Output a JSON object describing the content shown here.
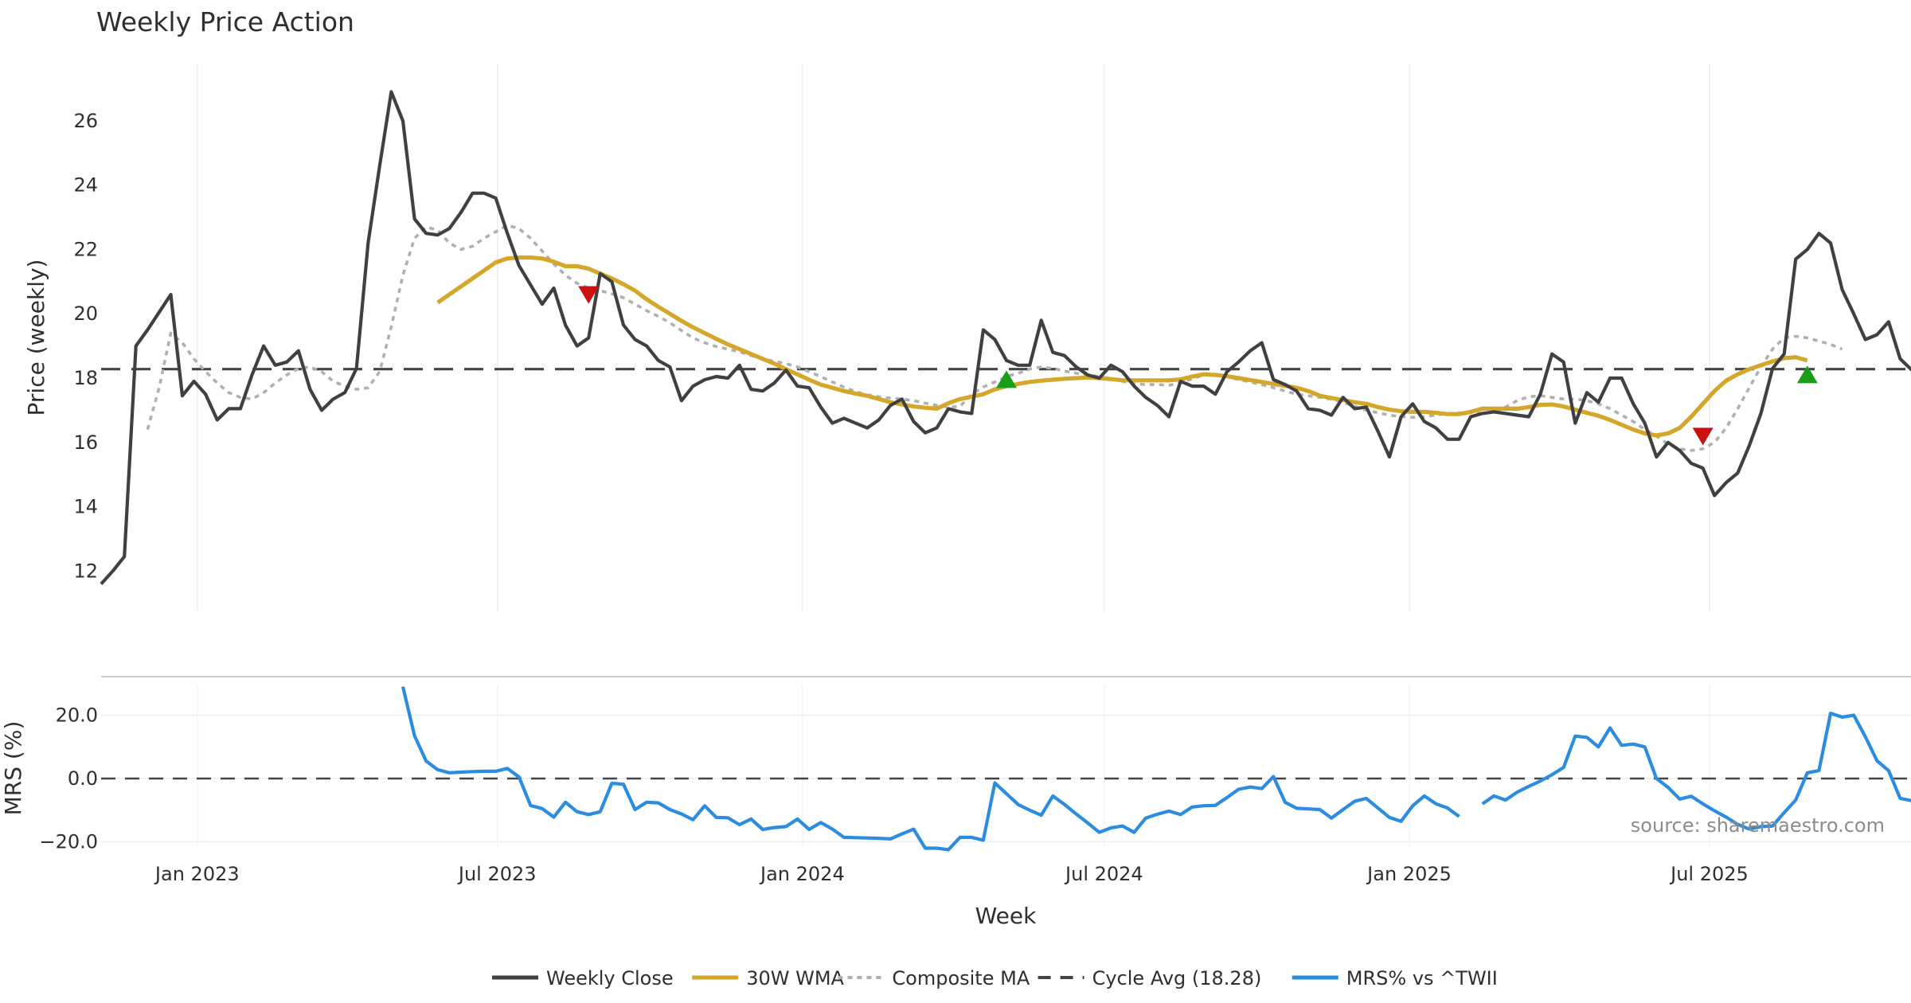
{
  "chart_data": {
    "type": "line",
    "title": "Weekly Price Action",
    "xlabel": "Week",
    "start_week": "2022-11-04",
    "x_ticks": [
      {
        "date": "2023-01-01",
        "label": "Jan 2023"
      },
      {
        "date": "2023-07-01",
        "label": "Jul 2023"
      },
      {
        "date": "2024-01-01",
        "label": "Jan 2024"
      },
      {
        "date": "2024-07-01",
        "label": "Jul 2024"
      },
      {
        "date": "2025-01-01",
        "label": "Jan 2025"
      },
      {
        "date": "2025-07-01",
        "label": "Jul 2025"
      }
    ],
    "price_panel": {
      "ylabel": "Price (weekly)",
      "ylim": [
        11.2,
        27.8
      ],
      "y_ticks": [
        "12",
        "14",
        "16",
        "18",
        "20",
        "22",
        "24",
        "26"
      ],
      "cycle_avg": 18.28,
      "series": [
        {
          "name": "Weekly Close",
          "color": "#404040",
          "style": "solid",
          "start_index": 0,
          "values": [
            11.6,
            12.0,
            12.45,
            19.0,
            19.5,
            20.05,
            20.6,
            17.45,
            17.9,
            17.5,
            16.7,
            17.05,
            17.05,
            18.1,
            19.0,
            18.4,
            18.5,
            18.85,
            17.65,
            17.0,
            17.35,
            17.55,
            18.3,
            22.2,
            24.6,
            26.9,
            26.0,
            22.95,
            22.5,
            22.45,
            22.65,
            23.15,
            23.75,
            23.75,
            23.6,
            22.5,
            21.5,
            20.9,
            20.3,
            20.8,
            19.65,
            19.0,
            19.25,
            21.25,
            21.0,
            19.65,
            19.2,
            19.0,
            18.55,
            18.35,
            17.3,
            17.75,
            17.95,
            18.05,
            18.0,
            18.4,
            17.65,
            17.6,
            17.85,
            18.25,
            17.75,
            17.7,
            17.1,
            16.6,
            16.75,
            16.6,
            16.45,
            16.7,
            17.15,
            17.35,
            16.65,
            16.3,
            16.45,
            17.05,
            16.95,
            16.9,
            19.5,
            19.2,
            18.55,
            18.4,
            18.4,
            19.8,
            18.8,
            18.7,
            18.35,
            18.1,
            18.0,
            18.4,
            18.2,
            17.75,
            17.4,
            17.15,
            16.8,
            17.9,
            17.75,
            17.75,
            17.5,
            18.2,
            18.5,
            18.85,
            19.1,
            17.95,
            17.8,
            17.6,
            17.05,
            17.0,
            16.85,
            17.4,
            17.05,
            17.1,
            16.35,
            15.55,
            16.8,
            17.2,
            16.65,
            16.45,
            16.1,
            16.1,
            16.8,
            16.9,
            16.95,
            16.9,
            16.85,
            16.8,
            17.5,
            18.75,
            18.5,
            16.6,
            17.55,
            17.25,
            18.0,
            18.0,
            17.2,
            16.6,
            15.55,
            16.0,
            15.75,
            15.35,
            15.2,
            14.35,
            14.75,
            15.05,
            15.9,
            16.9,
            18.3,
            18.75,
            21.7,
            22.0,
            22.5,
            22.2,
            20.75,
            20.0,
            19.2,
            19.35,
            19.75,
            18.6,
            18.25
          ]
        },
        {
          "name": "30W WMA",
          "color": "#d4a62a",
          "style": "solid",
          "start_index": 29,
          "values": [
            20.35,
            20.6,
            20.85,
            21.1,
            21.35,
            21.6,
            21.72,
            21.75,
            21.75,
            21.72,
            21.62,
            21.48,
            21.48,
            21.4,
            21.25,
            21.1,
            20.92,
            20.72,
            20.45,
            20.22,
            20.0,
            19.78,
            19.58,
            19.4,
            19.22,
            19.05,
            18.9,
            18.75,
            18.6,
            18.45,
            18.28,
            18.12,
            17.95,
            17.8,
            17.7,
            17.6,
            17.52,
            17.45,
            17.35,
            17.25,
            17.18,
            17.12,
            17.08,
            17.05,
            17.22,
            17.35,
            17.42,
            17.5,
            17.65,
            17.75,
            17.82,
            17.88,
            17.92,
            17.95,
            17.98,
            18.0,
            18.02,
            18.0,
            17.97,
            17.93,
            17.93,
            17.93,
            17.93,
            17.93,
            17.96,
            18.05,
            18.12,
            18.1,
            18.06,
            18.0,
            17.94,
            17.88,
            17.82,
            17.76,
            17.7,
            17.6,
            17.45,
            17.38,
            17.32,
            17.25,
            17.2,
            17.1,
            17.02,
            16.97,
            16.95,
            16.95,
            16.92,
            16.88,
            16.88,
            16.95,
            17.05,
            17.05,
            17.05,
            17.05,
            17.1,
            17.17,
            17.18,
            17.12,
            17.02,
            16.92,
            16.83,
            16.7,
            16.55,
            16.4,
            16.28,
            16.22,
            16.28,
            16.45,
            16.8,
            17.2,
            17.6,
            17.92,
            18.12,
            18.28,
            18.4,
            18.52,
            18.62,
            18.65,
            18.55
          ]
        },
        {
          "name": "Composite MA",
          "color": "#b0b0b0",
          "style": "dotted",
          "start_index": 4,
          "values": [
            16.4,
            17.7,
            19.4,
            19.1,
            18.6,
            18.2,
            17.85,
            17.55,
            17.4,
            17.35,
            17.55,
            17.85,
            18.1,
            18.3,
            18.35,
            18.2,
            17.9,
            17.75,
            17.65,
            17.7,
            18.2,
            19.6,
            21.2,
            22.35,
            22.7,
            22.6,
            22.2,
            22.0,
            22.1,
            22.35,
            22.55,
            22.75,
            22.65,
            22.35,
            21.95,
            21.55,
            21.2,
            20.95,
            20.8,
            20.72,
            20.62,
            20.5,
            20.3,
            20.1,
            19.92,
            19.72,
            19.48,
            19.25,
            19.1,
            18.98,
            18.9,
            18.82,
            18.7,
            18.6,
            18.52,
            18.45,
            18.35,
            18.2,
            18.05,
            17.88,
            17.72,
            17.58,
            17.48,
            17.42,
            17.38,
            17.35,
            17.3,
            17.22,
            17.15,
            17.1,
            17.12,
            17.5,
            17.72,
            17.88,
            18.05,
            18.15,
            18.28,
            18.35,
            18.3,
            18.22,
            18.15,
            18.1,
            18.05,
            17.98,
            17.9,
            17.82,
            17.8,
            17.8,
            17.78,
            17.85,
            17.98,
            18.1,
            18.12,
            18.05,
            17.95,
            17.88,
            17.8,
            17.7,
            17.6,
            17.5,
            17.45,
            17.4,
            17.35,
            17.25,
            17.12,
            17.0,
            16.92,
            16.85,
            16.8,
            16.78,
            16.8,
            16.85,
            16.9,
            16.92,
            16.92,
            16.9,
            16.95,
            17.1,
            17.3,
            17.42,
            17.45,
            17.4,
            17.35,
            17.35,
            17.3,
            17.2,
            17.05,
            16.85,
            16.65,
            16.4,
            16.2,
            15.95,
            15.8,
            15.75,
            15.8,
            16.0,
            16.45,
            17.05,
            17.7,
            18.35,
            18.9,
            19.25,
            19.3,
            19.25,
            19.15,
            19.05,
            18.9
          ]
        }
      ],
      "markers": [
        {
          "type": "sell",
          "shape": "triangle-down",
          "color": "#cc1111",
          "index": 42,
          "value": 20.6
        },
        {
          "type": "buy",
          "shape": "triangle-up",
          "color": "#1a9e1a",
          "index": 78,
          "value": 17.95
        },
        {
          "type": "sell",
          "shape": "triangle-down",
          "color": "#cc1111",
          "index": 138,
          "value": 16.2
        },
        {
          "type": "buy",
          "shape": "triangle-up",
          "color": "#1a9e1a",
          "index": 147,
          "value": 18.1
        }
      ]
    },
    "mrs_panel": {
      "ylabel": "MRS (%)",
      "ylim": [
        -26,
        33
      ],
      "y_ticks": [
        {
          "value": 20,
          "label": "20.0"
        },
        {
          "value": 0,
          "label": "0.0"
        },
        {
          "value": -20,
          "label": "−20.0"
        }
      ],
      "zero_line": 0,
      "series": [
        {
          "name": "MRS% vs ^TWII",
          "color": "#2b8ce0",
          "style": "solid",
          "segments": [
            {
              "start_index": 26,
              "values": [
                29,
                13.5,
                5.5,
                2.8,
                1.8,
                2.0,
                2.2,
                2.3,
                2.3,
                3.2,
                0.5,
                -8.5,
                -9.5,
                -12.2,
                -7.5,
                -10.5,
                -11.4,
                -10.5,
                -1.5,
                -1.8,
                -9.8,
                -7.5,
                -7.7,
                -9.8,
                -11.2,
                -13.0,
                -8.6,
                -12.3,
                -12.4,
                -14.6,
                -12.8,
                -16.1,
                -15.5,
                -15.2,
                -12.8,
                -16.1,
                -13.9,
                -16.0,
                -18.6,
                -18.7,
                -18.8,
                -18.9,
                -19.1,
                -17.5,
                -16.0,
                -22.0,
                -22.0,
                -22.5,
                -18.6,
                -18.6,
                -19.5,
                -1.4,
                -4.8,
                -8.2,
                -10.0,
                -11.6,
                -5.5,
                -8.2,
                -11.2,
                -14.0,
                -17.0,
                -15.6,
                -15.0,
                -17.0,
                -12.5,
                -11.3,
                -10.3,
                -11.4,
                -9.0,
                -8.6,
                -8.5,
                -6.0,
                -3.4,
                -2.7,
                -3.2,
                0.6,
                -7.5,
                -9.4,
                -9.6,
                -9.8,
                -12.5,
                -9.8,
                -7.2,
                -6.3,
                -9.3,
                -12.3,
                -13.5,
                -8.6,
                -5.5,
                -8.0,
                -9.3,
                -12.0
              ]
            },
            {
              "start_index": 119,
              "values": [
                -8.0,
                -5.5,
                -6.8,
                -4.3,
                -2.5,
                -0.8,
                1.2,
                3.5,
                13.4,
                13.0,
                10.0,
                16.0,
                10.5,
                10.9,
                10.0,
                0.0,
                -2.8,
                -6.5,
                -5.6,
                -8.0,
                -10.2,
                -12.2,
                -14.5,
                -16.0,
                -15.2,
                -15.0,
                -10.8,
                -6.8,
                1.8,
                2.5,
                20.6,
                19.4,
                20.0,
                13.2,
                5.6,
                2.5,
                -6.3,
                -7.0,
                -5.5,
                -10.8,
                -13.0
              ]
            }
          ]
        }
      ]
    },
    "legend": {
      "placement": "bottom-center",
      "entries": [
        {
          "label": "Weekly Close",
          "color": "#404040",
          "style": "solid"
        },
        {
          "label": "30W WMA",
          "color": "#d4a62a",
          "style": "solid"
        },
        {
          "label": "Composite MA",
          "color": "#b0b0b0",
          "style": "dotted"
        },
        {
          "label": "Cycle Avg (18.28)",
          "color": "#444444",
          "style": "dashed"
        },
        {
          "label": "MRS% vs ^TWII",
          "color": "#2b8ce0",
          "style": "solid"
        }
      ]
    },
    "annotation": "source: sharemaestro.com",
    "grid": true
  }
}
